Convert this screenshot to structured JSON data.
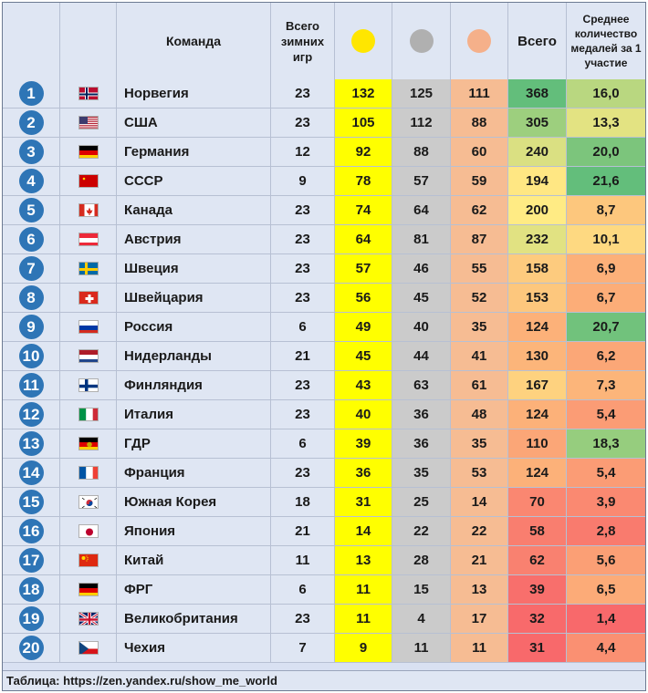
{
  "header": {
    "team": "Команда",
    "games": "Всего зимних игр",
    "total": "Всего",
    "avg": "Среднее количество медалей за 1 участие",
    "medal_colors": {
      "gold": "#ffe600",
      "silver": "#b0b0b0",
      "bronze": "#f5b08a"
    }
  },
  "colors": {
    "header_bg": "#dfe6f3",
    "badge": "#2e75b6",
    "gold_cell": "#ffff00",
    "silver_cell": "#cbcbcb",
    "bronze_cell": "#f6bc93",
    "scale_high": "#63be7b",
    "scale_mid": "#ffeb84",
    "scale_low": "#f8696b"
  },
  "rows": [
    {
      "rank": "1",
      "flag": "norway-flag-icon",
      "country": "Норвегия",
      "games": "23",
      "gold": "132",
      "silver": "125",
      "bronze": "111",
      "total": "368",
      "avg": "16,0"
    },
    {
      "rank": "2",
      "flag": "usa-flag-icon",
      "country": "США",
      "games": "23",
      "gold": "105",
      "silver": "112",
      "bronze": "88",
      "total": "305",
      "avg": "13,3"
    },
    {
      "rank": "3",
      "flag": "germany-flag-icon",
      "country": "Германия",
      "games": "12",
      "gold": "92",
      "silver": "88",
      "bronze": "60",
      "total": "240",
      "avg": "20,0"
    },
    {
      "rank": "4",
      "flag": "ussr-flag-icon",
      "country": "СССР",
      "games": "9",
      "gold": "78",
      "silver": "57",
      "bronze": "59",
      "total": "194",
      "avg": "21,6"
    },
    {
      "rank": "5",
      "flag": "canada-flag-icon",
      "country": "Канада",
      "games": "23",
      "gold": "74",
      "silver": "64",
      "bronze": "62",
      "total": "200",
      "avg": "8,7"
    },
    {
      "rank": "6",
      "flag": "austria-flag-icon",
      "country": "Австрия",
      "games": "23",
      "gold": "64",
      "silver": "81",
      "bronze": "87",
      "total": "232",
      "avg": "10,1"
    },
    {
      "rank": "7",
      "flag": "sweden-flag-icon",
      "country": "Швеция",
      "games": "23",
      "gold": "57",
      "silver": "46",
      "bronze": "55",
      "total": "158",
      "avg": "6,9"
    },
    {
      "rank": "8",
      "flag": "switzerland-flag-icon",
      "country": "Швейцария",
      "games": "23",
      "gold": "56",
      "silver": "45",
      "bronze": "52",
      "total": "153",
      "avg": "6,7"
    },
    {
      "rank": "9",
      "flag": "russia-flag-icon",
      "country": "Россия",
      "games": "6",
      "gold": "49",
      "silver": "40",
      "bronze": "35",
      "total": "124",
      "avg": "20,7"
    },
    {
      "rank": "10",
      "flag": "netherlands-flag-icon",
      "country": "Нидерланды",
      "games": "21",
      "gold": "45",
      "silver": "44",
      "bronze": "41",
      "total": "130",
      "avg": "6,2"
    },
    {
      "rank": "11",
      "flag": "finland-flag-icon",
      "country": "Финляндия",
      "games": "23",
      "gold": "43",
      "silver": "63",
      "bronze": "61",
      "total": "167",
      "avg": "7,3"
    },
    {
      "rank": "12",
      "flag": "italy-flag-icon",
      "country": "Италия",
      "games": "23",
      "gold": "40",
      "silver": "36",
      "bronze": "48",
      "total": "124",
      "avg": "5,4"
    },
    {
      "rank": "13",
      "flag": "gdr-flag-icon",
      "country": "ГДР",
      "games": "6",
      "gold": "39",
      "silver": "36",
      "bronze": "35",
      "total": "110",
      "avg": "18,3"
    },
    {
      "rank": "14",
      "flag": "france-flag-icon",
      "country": "Франция",
      "games": "23",
      "gold": "36",
      "silver": "35",
      "bronze": "53",
      "total": "124",
      "avg": "5,4"
    },
    {
      "rank": "15",
      "flag": "south-korea-flag-icon",
      "country": "Южная Корея",
      "games": "18",
      "gold": "31",
      "silver": "25",
      "bronze": "14",
      "total": "70",
      "avg": "3,9"
    },
    {
      "rank": "16",
      "flag": "japan-flag-icon",
      "country": "Япония",
      "games": "21",
      "gold": "14",
      "silver": "22",
      "bronze": "22",
      "total": "58",
      "avg": "2,8"
    },
    {
      "rank": "17",
      "flag": "china-flag-icon",
      "country": "Китай",
      "games": "11",
      "gold": "13",
      "silver": "28",
      "bronze": "21",
      "total": "62",
      "avg": "5,6"
    },
    {
      "rank": "18",
      "flag": "frg-flag-icon",
      "country": "ФРГ",
      "games": "6",
      "gold": "11",
      "silver": "15",
      "bronze": "13",
      "total": "39",
      "avg": "6,5"
    },
    {
      "rank": "19",
      "flag": "uk-flag-icon",
      "country": "Великобритания",
      "games": "23",
      "gold": "11",
      "silver": "4",
      "bronze": "17",
      "total": "32",
      "avg": "1,4"
    },
    {
      "rank": "20",
      "flag": "czechia-flag-icon",
      "country": "Чехия",
      "games": "7",
      "gold": "9",
      "silver": "11",
      "bronze": "11",
      "total": "31",
      "avg": "4,4"
    }
  ],
  "footer": "Таблица: https://zen.yandex.ru/show_me_world"
}
